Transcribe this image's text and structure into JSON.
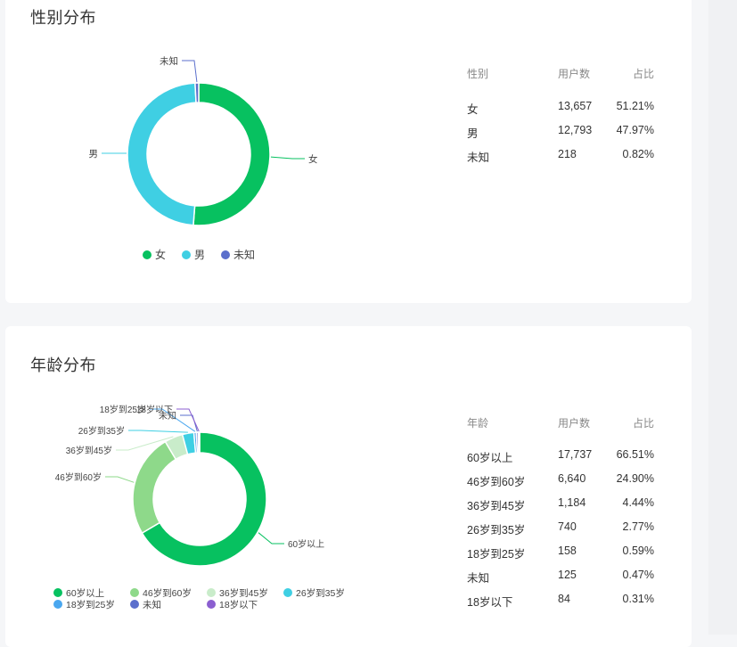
{
  "gender": {
    "title": "性别分布",
    "columns": [
      "性别",
      "用户数",
      "占比"
    ],
    "rows": [
      {
        "label": "女",
        "count": "13,657",
        "pct": "51.21%"
      },
      {
        "label": "男",
        "count": "12,793",
        "pct": "47.97%"
      },
      {
        "label": "未知",
        "count": "218",
        "pct": "0.82%"
      }
    ],
    "legend": [
      "女",
      "男",
      "未知"
    ]
  },
  "age": {
    "title": "年龄分布",
    "columns": [
      "年龄",
      "用户数",
      "占比"
    ],
    "rows": [
      {
        "label": "60岁以上",
        "count": "17,737",
        "pct": "66.51%"
      },
      {
        "label": "46岁到60岁",
        "count": "6,640",
        "pct": "24.90%"
      },
      {
        "label": "36岁到45岁",
        "count": "1,184",
        "pct": "4.44%"
      },
      {
        "label": "26岁到35岁",
        "count": "740",
        "pct": "2.77%"
      },
      {
        "label": "18岁到25岁",
        "count": "158",
        "pct": "0.59%"
      },
      {
        "label": "未知",
        "count": "125",
        "pct": "0.47%"
      },
      {
        "label": "18岁以下",
        "count": "84",
        "pct": "0.31%"
      }
    ],
    "legend": [
      "60岁以上",
      "46岁到60岁",
      "36岁到45岁",
      "26岁到35岁",
      "18岁到25岁",
      "未知",
      "18岁以下"
    ]
  },
  "chart_data": [
    {
      "type": "pie",
      "title": "性别分布",
      "categories": [
        "女",
        "男",
        "未知"
      ],
      "values": [
        13657,
        12793,
        218
      ],
      "colors": [
        "#07c160",
        "#3fcfe3",
        "#5b6fcc"
      ],
      "donut": true,
      "legend": "bottom"
    },
    {
      "type": "pie",
      "title": "年龄分布",
      "categories": [
        "60岁以上",
        "46岁到60岁",
        "36岁到45岁",
        "26岁到35岁",
        "18岁到25岁",
        "未知",
        "18岁以下"
      ],
      "values": [
        17737,
        6640,
        1184,
        740,
        158,
        125,
        84
      ],
      "colors": [
        "#07c160",
        "#8ed98a",
        "#c9ecca",
        "#3fcfe3",
        "#4aa7ef",
        "#5b6fcc",
        "#8b5fd0"
      ],
      "donut": true,
      "legend": "bottom"
    }
  ]
}
